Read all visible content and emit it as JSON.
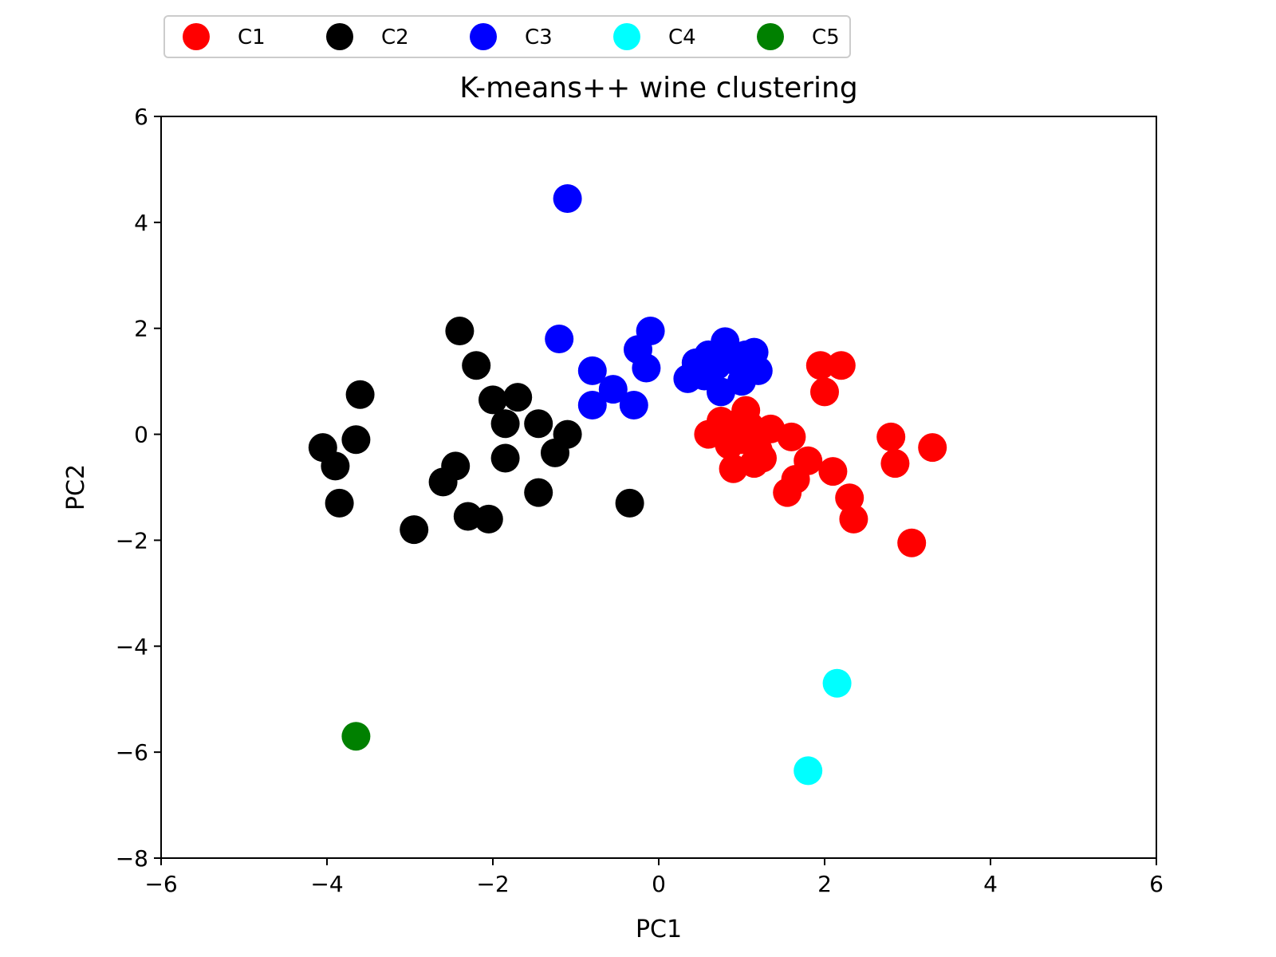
{
  "chart_data": {
    "type": "scatter",
    "title": "K-means++ wine clustering",
    "xlabel": "PC1",
    "ylabel": "PC2",
    "xlim": [
      -6,
      6
    ],
    "ylim": [
      -8,
      6
    ],
    "xticks": [
      -6,
      -4,
      -2,
      0,
      2,
      4,
      6
    ],
    "yticks": [
      -8,
      -6,
      -4,
      -2,
      0,
      2,
      4,
      6
    ],
    "xtick_labels": [
      "−6",
      "−4",
      "−2",
      "0",
      "2",
      "4",
      "6"
    ],
    "ytick_labels": [
      "−8",
      "−6",
      "−4",
      "−2",
      "0",
      "2",
      "4",
      "6"
    ],
    "grid": false,
    "legend_position": "top",
    "series": [
      {
        "name": "C1",
        "color": "#ff0000",
        "points": [
          [
            0.6,
            0.0
          ],
          [
            0.75,
            0.25
          ],
          [
            0.85,
            0.05
          ],
          [
            0.95,
            0.2
          ],
          [
            1.05,
            0.45
          ],
          [
            0.85,
            -0.2
          ],
          [
            1.0,
            -0.1
          ],
          [
            1.1,
            0.15
          ],
          [
            1.2,
            -0.3
          ],
          [
            1.35,
            0.1
          ],
          [
            0.9,
            -0.65
          ],
          [
            1.15,
            -0.55
          ],
          [
            1.25,
            -0.45
          ],
          [
            1.6,
            -0.05
          ],
          [
            1.8,
            -0.5
          ],
          [
            1.65,
            -0.85
          ],
          [
            1.55,
            -1.1
          ],
          [
            2.1,
            -0.7
          ],
          [
            2.3,
            -1.2
          ],
          [
            2.35,
            -1.6
          ],
          [
            1.95,
            1.3
          ],
          [
            2.2,
            1.3
          ],
          [
            2.0,
            0.8
          ],
          [
            2.8,
            -0.05
          ],
          [
            2.85,
            -0.55
          ],
          [
            3.3,
            -0.25
          ],
          [
            3.05,
            -2.05
          ]
        ]
      },
      {
        "name": "C2",
        "color": "#000000",
        "points": [
          [
            -4.05,
            -0.25
          ],
          [
            -3.9,
            -0.6
          ],
          [
            -3.85,
            -1.3
          ],
          [
            -3.65,
            -0.1
          ],
          [
            -3.6,
            0.75
          ],
          [
            -2.95,
            -1.8
          ],
          [
            -2.6,
            -0.9
          ],
          [
            -2.45,
            -0.6
          ],
          [
            -2.4,
            1.95
          ],
          [
            -2.3,
            -1.55
          ],
          [
            -2.2,
            1.3
          ],
          [
            -2.05,
            -1.6
          ],
          [
            -2.0,
            0.65
          ],
          [
            -1.85,
            -0.45
          ],
          [
            -1.85,
            0.2
          ],
          [
            -1.7,
            0.7
          ],
          [
            -1.45,
            0.2
          ],
          [
            -1.45,
            -1.1
          ],
          [
            -1.25,
            -0.35
          ],
          [
            -1.1,
            0.0
          ],
          [
            -0.35,
            -1.3
          ]
        ]
      },
      {
        "name": "C3",
        "color": "#0000ff",
        "points": [
          [
            -1.1,
            4.45
          ],
          [
            -1.2,
            1.8
          ],
          [
            -0.8,
            1.2
          ],
          [
            -0.8,
            0.55
          ],
          [
            -0.55,
            0.85
          ],
          [
            -0.3,
            0.55
          ],
          [
            -0.25,
            1.6
          ],
          [
            -0.15,
            1.25
          ],
          [
            -0.1,
            1.95
          ],
          [
            0.35,
            1.05
          ],
          [
            0.45,
            1.35
          ],
          [
            0.55,
            1.1
          ],
          [
            0.6,
            1.5
          ],
          [
            0.75,
            0.8
          ],
          [
            0.8,
            1.75
          ],
          [
            0.9,
            1.4
          ],
          [
            1.0,
            1.0
          ],
          [
            1.05,
            1.5
          ],
          [
            1.15,
            1.55
          ],
          [
            1.2,
            1.2
          ],
          [
            0.7,
            1.3
          ]
        ]
      },
      {
        "name": "C4",
        "color": "#00ffff",
        "points": [
          [
            2.15,
            -4.7
          ],
          [
            1.8,
            -6.35
          ]
        ]
      },
      {
        "name": "C5",
        "color": "#008000",
        "points": [
          [
            -3.65,
            -5.7
          ]
        ]
      }
    ]
  }
}
